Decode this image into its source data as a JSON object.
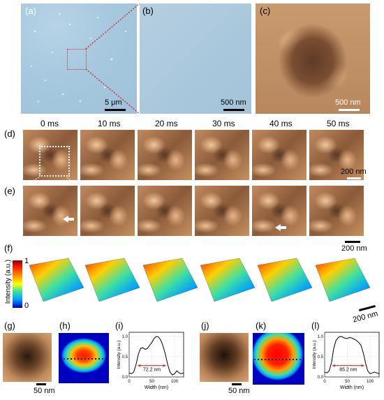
{
  "panels": {
    "a": "(a)",
    "b": "(b)",
    "c": "(c)",
    "d": "(d)",
    "e": "(e)",
    "f": "(f)",
    "g": "(g)",
    "h": "(h)",
    "i": "(i)",
    "j": "(j)",
    "k": "(k)",
    "l": "(l)"
  },
  "scalebars": {
    "a": "5 μm",
    "b": "500 nm",
    "c": "500 nm",
    "d": "200 nm",
    "e": "200 nm",
    "f": "200 nm",
    "g": "50 nm",
    "j": "50 nm"
  },
  "time_labels": [
    "0 ms",
    "10 ms",
    "20 ms",
    "30 ms",
    "40 ms",
    "50 ms"
  ],
  "colorbar": {
    "label": "Intensity (a.u.)",
    "max": "1",
    "min": "0",
    "colors": [
      "#8b0000",
      "#ff2000",
      "#ffa500",
      "#ffff00",
      "#40e0a0",
      "#00a0ff",
      "#0000c0"
    ]
  },
  "chart_data": [
    {
      "type": "line",
      "panel": "(i)",
      "xlabel": "Width (nm)",
      "ylabel": "Intensity (a.u.)",
      "xticks": [
        "0",
        "50",
        "100"
      ],
      "yticks": [
        "0.0",
        "0.5",
        "1.0"
      ],
      "xlim": [
        0,
        120
      ],
      "ylim": [
        0,
        1.1
      ],
      "annotation": "72.2 nm",
      "x": [
        0,
        5,
        10,
        15,
        20,
        25,
        30,
        35,
        40,
        45,
        50,
        55,
        60,
        65,
        70,
        75,
        80,
        85,
        90,
        95,
        100,
        105,
        110,
        115,
        120
      ],
      "y": [
        0.1,
        0.08,
        0.12,
        0.3,
        0.55,
        0.7,
        0.72,
        0.68,
        0.7,
        0.78,
        0.85,
        0.95,
        1.0,
        0.98,
        0.9,
        0.75,
        0.55,
        0.3,
        0.12,
        0.05,
        0.08,
        0.15,
        0.1,
        0.08,
        0.1
      ]
    },
    {
      "type": "line",
      "panel": "(l)",
      "xlabel": "Width (nm)",
      "ylabel": "Intensity (a.u.)",
      "xticks": [
        "0",
        "50",
        "100"
      ],
      "yticks": [
        "0.0",
        "0.5",
        "1.0"
      ],
      "xlim": [
        0,
        120
      ],
      "ylim": [
        0,
        1.1
      ],
      "annotation": "85.2 nm",
      "x": [
        0,
        5,
        10,
        15,
        20,
        25,
        30,
        35,
        40,
        45,
        50,
        55,
        60,
        65,
        70,
        75,
        80,
        85,
        90,
        95,
        100,
        105,
        110,
        115,
        120
      ],
      "y": [
        0.12,
        0.1,
        0.15,
        0.35,
        0.7,
        0.9,
        0.97,
        1.0,
        0.98,
        0.95,
        0.95,
        0.97,
        0.96,
        0.93,
        0.9,
        0.85,
        0.78,
        0.6,
        0.35,
        0.15,
        0.08,
        0.1,
        0.12,
        0.1,
        0.08
      ]
    }
  ]
}
